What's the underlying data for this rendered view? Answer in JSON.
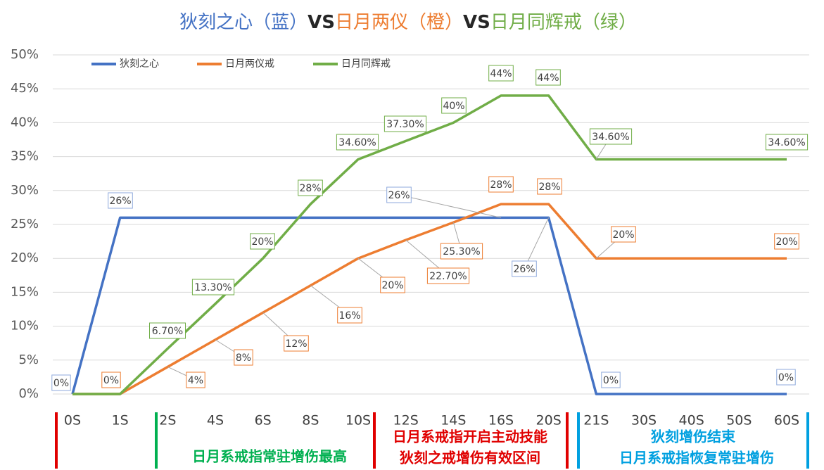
{
  "chart_data": {
    "type": "line",
    "title": [
      {
        "text": "狄刻之心（蓝）",
        "color": "#4472c4",
        "bold": false
      },
      {
        "text": "VS",
        "color": "#262626",
        "bold": true
      },
      {
        "text": "日月两仪（橙）",
        "color": "#ed7d31",
        "bold": false
      },
      {
        "text": "VS",
        "color": "#262626",
        "bold": true
      },
      {
        "text": "日月同辉戒（绿）",
        "color": "#70ad47",
        "bold": false
      }
    ],
    "categories": [
      "0S",
      "1S",
      "2S",
      "4S",
      "6S",
      "8S",
      "10S",
      "12S",
      "14S",
      "16S",
      "20S",
      "21S",
      "30S",
      "40S",
      "50S",
      "60S"
    ],
    "series": [
      {
        "name": "狄刻之心",
        "color": "#4472c4",
        "label_border": "#8faadc",
        "values": [
          0,
          26,
          26,
          26,
          26,
          26,
          26,
          26,
          26,
          26,
          26,
          0,
          0,
          0,
          0,
          0
        ],
        "value_labels": [
          "0%",
          "26%",
          null,
          null,
          null,
          null,
          null,
          null,
          null,
          "26%",
          "26%",
          "0%",
          null,
          null,
          null,
          "0%"
        ]
      },
      {
        "name": "日月两仪戒",
        "color": "#ed7d31",
        "label_border": "#ed7d31",
        "values": [
          0,
          0,
          4,
          8,
          12,
          16,
          20,
          22.7,
          25.3,
          28,
          28,
          20,
          20,
          20,
          20,
          20
        ],
        "value_labels": [
          null,
          "0%",
          "4%",
          "8%",
          "12%",
          "16%",
          "20%",
          "22.70%",
          "25.30%",
          "28%",
          "28%",
          "20%",
          null,
          null,
          null,
          "20%"
        ]
      },
      {
        "name": "日月同辉戒",
        "color": "#70ad47",
        "label_border": "#70ad47",
        "values": [
          0,
          0,
          6.7,
          13.3,
          20,
          28,
          34.6,
          37.3,
          40,
          44,
          44,
          34.6,
          34.6,
          34.6,
          34.6,
          34.6
        ],
        "value_labels": [
          null,
          null,
          "6.70%",
          "13.30%",
          "20%",
          "28%",
          "34.60%",
          "37.30%",
          "40%",
          "44%",
          "44%",
          "34.60%",
          null,
          null,
          null,
          "34.60%"
        ]
      }
    ],
    "ylim": [
      0,
      50
    ],
    "yticks": [
      {
        "value": 0,
        "label": "0%"
      },
      {
        "value": 5,
        "label": "5%"
      },
      {
        "value": 10,
        "label": "10%"
      },
      {
        "value": 15,
        "label": "15%"
      },
      {
        "value": 20,
        "label": "20%"
      },
      {
        "value": 25,
        "label": "25%"
      },
      {
        "value": 30,
        "label": "30%"
      },
      {
        "value": 35,
        "label": "35%"
      },
      {
        "value": 40,
        "label": "40%"
      },
      {
        "value": 45,
        "label": "45%"
      },
      {
        "value": 50,
        "label": "50%"
      }
    ],
    "grid": true,
    "legend": "top",
    "annotations": [
      {
        "text": "日月系戒指常驻增伤最高",
        "color": "#00b050"
      },
      {
        "text": "日月系戒指开启主动技能",
        "color": "#e00000"
      },
      {
        "text": "狄刻之戒增伤有效区间",
        "color": "#e00000"
      },
      {
        "text": "狄刻增伤结束",
        "color": "#00a0e0"
      },
      {
        "text": "日月系戒指恢复常驻增伤",
        "color": "#00a0e0"
      }
    ]
  }
}
